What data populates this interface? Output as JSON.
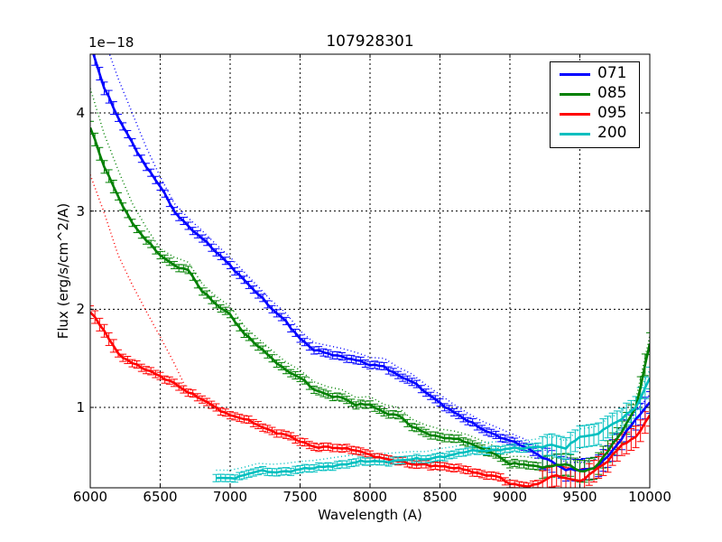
{
  "chart_data": {
    "type": "line",
    "title": "107928301",
    "xlabel": "Wavelength (A)",
    "ylabel": "Flux (erg/s/cm^2/A)",
    "y_offset_label": "1e−18",
    "y_scale": 1e-18,
    "xlim": [
      6000,
      10000
    ],
    "ylim": [
      0.18,
      4.6
    ],
    "x_ticks": [
      "6000",
      "6500",
      "7000",
      "7500",
      "8000",
      "8500",
      "9000",
      "9500",
      "10000"
    ],
    "y_ticks": [
      "1",
      "2",
      "3",
      "4"
    ],
    "grid": true,
    "legend_position": "upper right",
    "error_bars": true,
    "dotted_model_curves": true,
    "x": [
      6000,
      6100,
      6200,
      6300,
      6400,
      6500,
      6600,
      6700,
      6800,
      6900,
      7000,
      7100,
      7200,
      7300,
      7400,
      7500,
      7600,
      7700,
      7800,
      7900,
      8000,
      8100,
      8200,
      8300,
      8400,
      8500,
      8600,
      8700,
      8800,
      8900,
      9000,
      9100,
      9200,
      9300,
      9400,
      9500,
      9600,
      9700,
      9800,
      9900,
      10000
    ],
    "series": [
      {
        "name": "071",
        "color": "#0000ff",
        "values": [
          4.7,
          4.25,
          3.95,
          3.7,
          3.45,
          3.25,
          3.0,
          2.85,
          2.72,
          2.58,
          2.45,
          2.3,
          2.15,
          2.0,
          1.88,
          1.7,
          1.58,
          1.55,
          1.52,
          1.48,
          1.43,
          1.42,
          1.33,
          1.26,
          1.15,
          1.05,
          0.95,
          0.86,
          0.78,
          0.72,
          0.66,
          0.6,
          0.52,
          0.45,
          0.36,
          0.36,
          0.38,
          0.5,
          0.68,
          0.88,
          1.05
        ]
      },
      {
        "name": "085",
        "color": "#008000",
        "values": [
          3.85,
          3.45,
          3.15,
          2.88,
          2.7,
          2.55,
          2.45,
          2.4,
          2.18,
          2.05,
          1.95,
          1.75,
          1.62,
          1.5,
          1.38,
          1.3,
          1.18,
          1.13,
          1.1,
          1.02,
          1.03,
          0.95,
          0.92,
          0.8,
          0.74,
          0.7,
          0.68,
          0.64,
          0.58,
          0.52,
          0.42,
          0.42,
          0.4,
          0.4,
          0.42,
          0.35,
          0.38,
          0.55,
          0.75,
          1.0,
          1.65
        ]
      },
      {
        "name": "095",
        "color": "#ff0000",
        "values": [
          1.97,
          1.78,
          1.55,
          1.45,
          1.38,
          1.32,
          1.25,
          1.15,
          1.08,
          1.0,
          0.92,
          0.88,
          0.82,
          0.76,
          0.72,
          0.65,
          0.6,
          0.6,
          0.58,
          0.56,
          0.52,
          0.48,
          0.45,
          0.42,
          0.42,
          0.4,
          0.38,
          0.36,
          0.32,
          0.3,
          0.22,
          0.2,
          0.22,
          0.3,
          0.28,
          0.25,
          0.35,
          0.45,
          0.62,
          0.7,
          0.92
        ]
      },
      {
        "name": "200",
        "color": "#00bfbf",
        "values": [
          null,
          null,
          null,
          null,
          null,
          null,
          null,
          null,
          null,
          0.28,
          0.28,
          0.31,
          0.35,
          0.34,
          0.35,
          0.37,
          0.38,
          0.4,
          0.42,
          0.44,
          0.45,
          0.45,
          0.46,
          0.47,
          0.47,
          0.5,
          0.52,
          0.55,
          0.56,
          0.57,
          0.58,
          0.58,
          0.6,
          0.62,
          0.58,
          0.7,
          0.72,
          0.8,
          0.88,
          1.0,
          1.3
        ]
      }
    ]
  }
}
